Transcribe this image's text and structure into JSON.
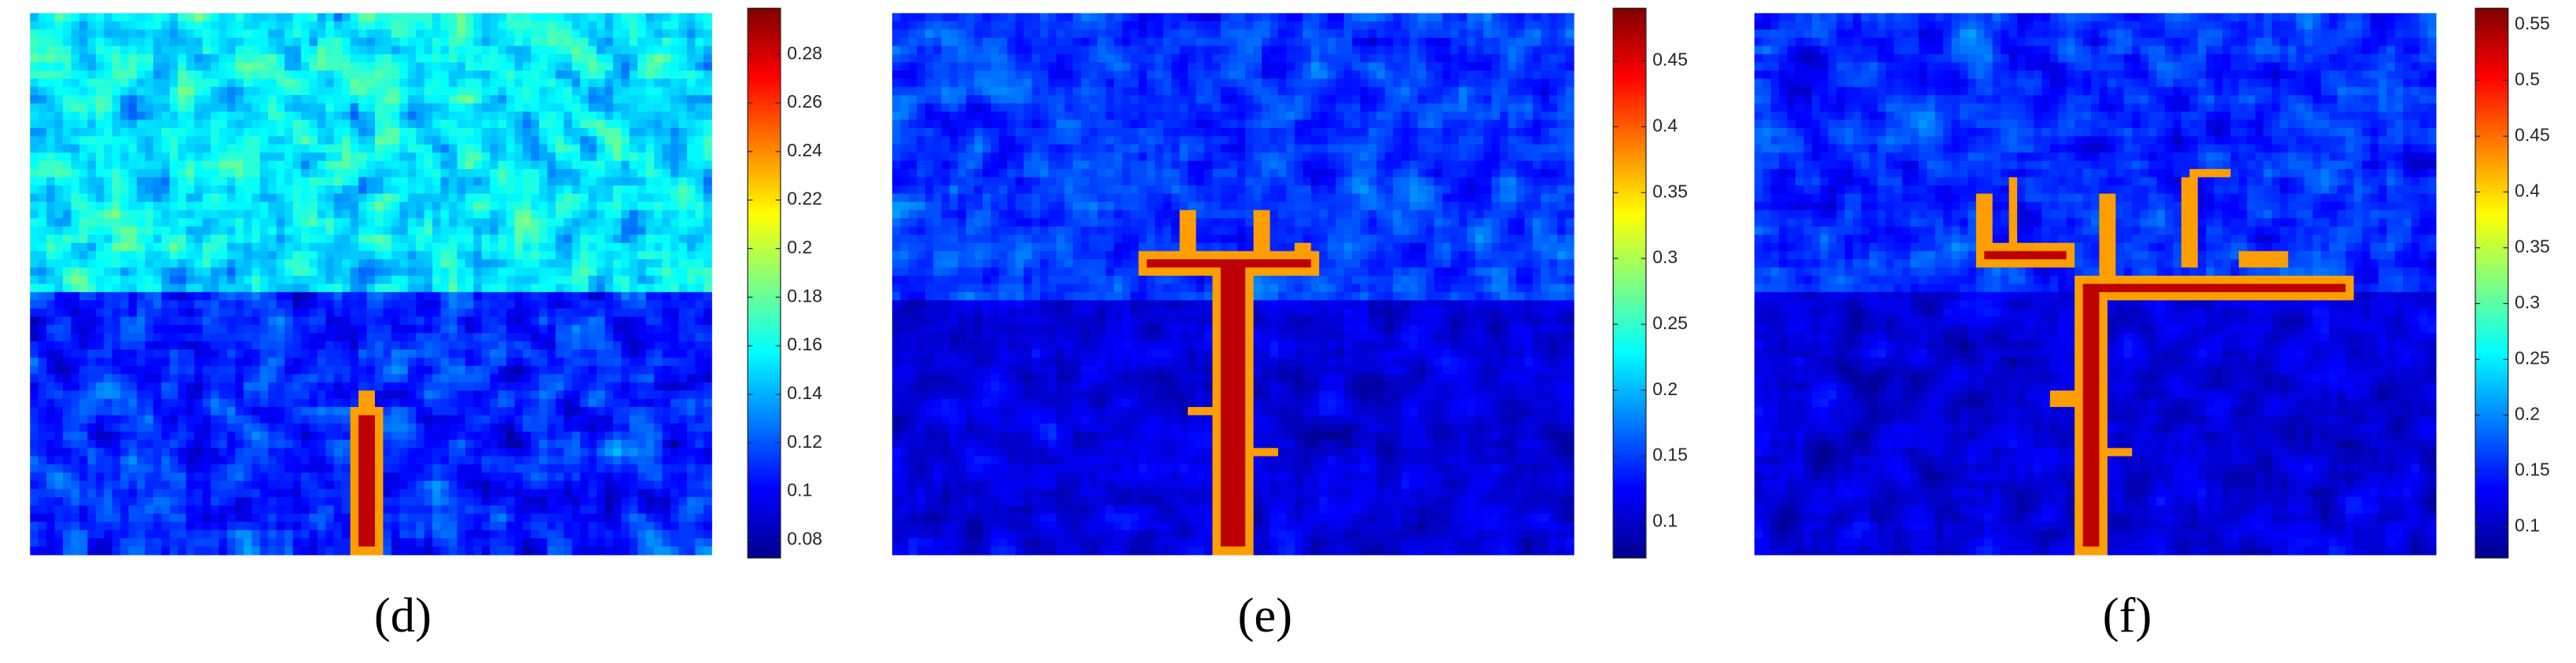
{
  "chart_data": [
    {
      "type": "heatmap",
      "label": "(d)",
      "clim": [
        0.0726,
        0.299
      ],
      "colorbar_ticks": [
        0.08,
        0.1,
        0.12,
        0.14,
        0.16,
        0.18,
        0.2,
        0.22,
        0.24,
        0.26,
        0.28
      ],
      "colormap": "jet"
    },
    {
      "type": "heatmap",
      "label": "(e)",
      "clim": [
        0.0726,
        0.49
      ],
      "colorbar_ticks": [
        0.1,
        0.15,
        0.2,
        0.25,
        0.3,
        0.35,
        0.4,
        0.45
      ],
      "colormap": "jet"
    },
    {
      "type": "heatmap",
      "label": "(f)",
      "clim": [
        0.072,
        0.5647
      ],
      "colorbar_ticks": [
        0.1,
        0.15,
        0.2,
        0.25,
        0.3,
        0.35,
        0.4,
        0.45,
        0.5,
        0.55
      ],
      "colormap": "jet"
    }
  ]
}
